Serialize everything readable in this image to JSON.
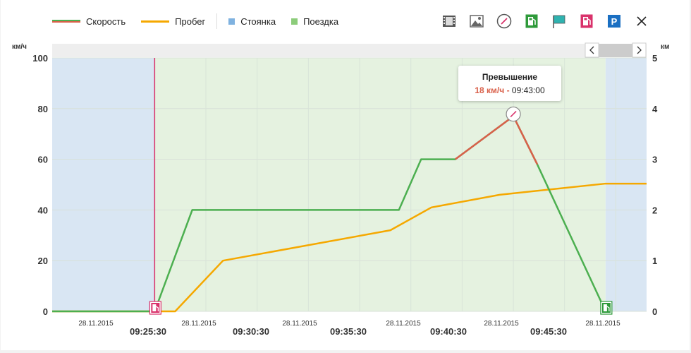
{
  "legend": {
    "speed": "Скорость",
    "mileage": "Пробег",
    "parking": "Стоянка",
    "trip": "Поездка"
  },
  "toolbar": {
    "icons": [
      "film-icon",
      "image-icon",
      "speedometer-icon",
      "fuel-fill-icon",
      "flag-icon",
      "fuel-drain-icon",
      "parking-icon",
      "close-icon"
    ],
    "colors": {
      "fuel_fill": "#2e9a3a",
      "flag": "#2fb3b0",
      "fuel_drain": "#d9326b",
      "parking": "#1a6fc2"
    }
  },
  "axes": {
    "left_unit": "км/ч",
    "right_unit": "км",
    "left_ticks": [
      "0",
      "20",
      "40",
      "60",
      "80",
      "100"
    ],
    "right_ticks": [
      "0",
      "1",
      "2",
      "3",
      "4",
      "5"
    ]
  },
  "x_ticks": [
    {
      "date": "28.11.2015",
      "time": "09:25:30"
    },
    {
      "date": "28.11.2015",
      "time": "09:30:30"
    },
    {
      "date": "28.11.2015",
      "time": "09:35:30"
    },
    {
      "date": "28.11.2015",
      "time": "09:40:30"
    },
    {
      "date": "28.11.2015",
      "time": "09:45:30"
    },
    {
      "date": "28.11.2015",
      "time": ""
    }
  ],
  "tooltip": {
    "title": "Превышение",
    "value": "18 км/ч",
    "separator": " - ",
    "time": "09:43:00"
  },
  "colors": {
    "speed": "#4caf50",
    "speed_excess": "#d9604a",
    "mileage": "#f5a800",
    "parking_band": "#d9e6f3",
    "trip_band": "#e5f2e0",
    "parking_legend": "#7fb2e0",
    "trip_legend": "#8ccc7a",
    "event_line": "#d9326b"
  },
  "chart_data": {
    "type": "line",
    "x_unit": "time",
    "x_ticks": [
      "09:25:30",
      "09:30:30",
      "09:35:30",
      "09:40:30",
      "09:45:30"
    ],
    "ylabel_left": "км/ч",
    "ylabel_right": "км",
    "ylim_left": [
      0,
      100
    ],
    "ylim_right": [
      0,
      5
    ],
    "grid": true,
    "bands": [
      {
        "name": "Стоянка",
        "from": "09:20:30",
        "to": "09:25:30"
      },
      {
        "name": "Поездка",
        "from": "09:25:30",
        "to": "09:47:30"
      },
      {
        "name": "Стоянка",
        "from": "09:47:30",
        "to": "09:49:30"
      }
    ],
    "series": [
      {
        "name": "Скорость",
        "axis": "left",
        "x": [
          "09:20:30",
          "09:25:30",
          "09:27:20",
          "09:37:25",
          "09:38:30",
          "09:40:10",
          "09:43:00",
          "09:44:10",
          "09:47:30"
        ],
        "values": [
          0,
          0,
          40,
          40,
          60,
          60,
          77,
          58,
          0
        ]
      },
      {
        "name": "Пробег",
        "axis": "right",
        "x": [
          "09:20:30",
          "09:26:30",
          "09:28:50",
          "09:37:00",
          "09:39:00",
          "09:42:20",
          "09:47:30",
          "09:49:30"
        ],
        "values": [
          0,
          0,
          1.0,
          1.6,
          2.05,
          2.3,
          2.52,
          2.52
        ]
      }
    ],
    "excess_segment": {
      "from": "09:40:10",
      "to": "09:44:10"
    },
    "events": [
      {
        "type": "fuel-drain",
        "x": "09:25:30"
      },
      {
        "type": "fuel-fill",
        "x": "09:47:30"
      },
      {
        "type": "speeding",
        "x": "09:43:00",
        "value": 77
      }
    ]
  }
}
